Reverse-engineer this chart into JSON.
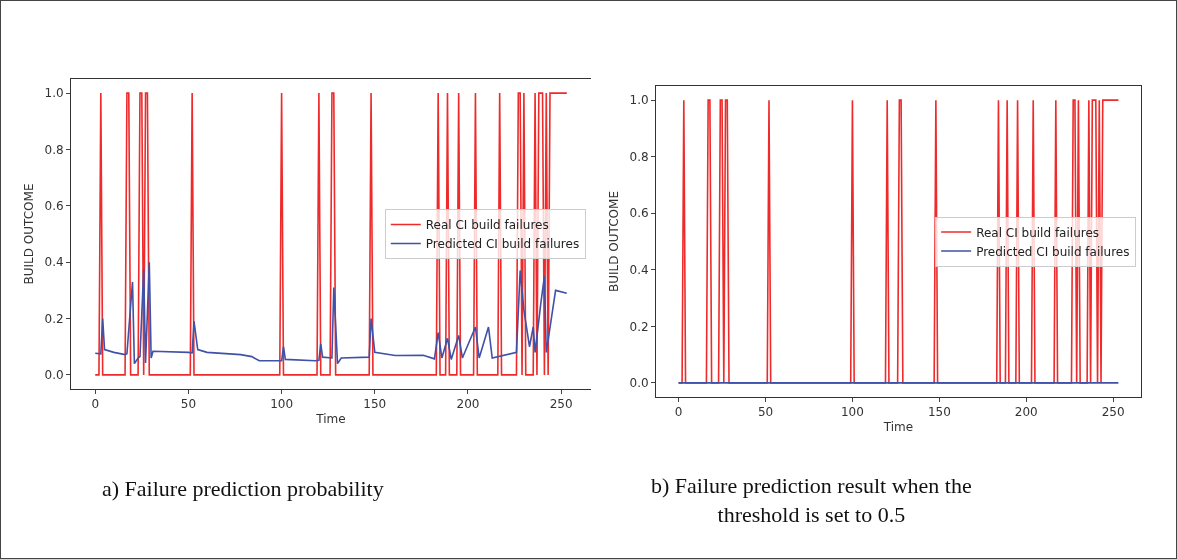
{
  "chart_data": [
    {
      "type": "line",
      "xlabel": "Time",
      "ylabel": "BUILD OUTCOME",
      "xlim": [
        -13,
        266
      ],
      "ylim": [
        -0.05,
        1.05
      ],
      "xticks": [
        0,
        50,
        100,
        150,
        200,
        250
      ],
      "yticks": [
        {
          "value": 0,
          "label": "0.0"
        },
        {
          "value": 0.2,
          "label": "0.2"
        },
        {
          "value": 0.4,
          "label": "0.4"
        },
        {
          "value": 0.6,
          "label": "0.6"
        },
        {
          "value": 0.8,
          "label": "0.8"
        },
        {
          "value": 1,
          "label": "1.0"
        }
      ],
      "grid": false,
      "legend": "right",
      "annotations": [
        "a) Failure prediction probability"
      ],
      "series": [
        {
          "name": "Real CI build failures",
          "color": "#ee2a2a",
          "x": [
            0,
            2,
            3,
            4,
            16,
            17,
            18,
            19,
            23,
            24,
            25,
            26,
            27,
            28,
            29,
            51,
            52,
            53,
            99,
            100,
            101,
            119,
            120,
            121,
            126,
            127,
            128,
            129,
            147,
            148,
            149,
            183,
            184,
            185,
            188,
            189,
            190,
            194,
            195,
            196,
            203,
            204,
            205,
            216,
            217,
            218,
            226,
            227,
            228,
            229,
            230,
            231,
            235,
            236,
            237,
            238,
            240,
            241,
            242,
            243,
            244,
            253
          ],
          "values": [
            0,
            0,
            1,
            0,
            0,
            1,
            1,
            0,
            0,
            1,
            1,
            0,
            1,
            1,
            0,
            0,
            1,
            0,
            0,
            1,
            0,
            0,
            1,
            0,
            0,
            1,
            1,
            0,
            0,
            1,
            0,
            0,
            1,
            0,
            0,
            1,
            0,
            0,
            1,
            0,
            0,
            1,
            0,
            0,
            1,
            0,
            0,
            1,
            1,
            0,
            1,
            0,
            0,
            1,
            0,
            1,
            1,
            0,
            1,
            0,
            1,
            1
          ]
        },
        {
          "name": "Predicted CI build failures",
          "color": "#3f51a8",
          "x": [
            0,
            3,
            4,
            5,
            10,
            16,
            17,
            20,
            21,
            23,
            24,
            26,
            27,
            29,
            30,
            31,
            50,
            52,
            53,
            55,
            60,
            78,
            84,
            88,
            100,
            101,
            102,
            118,
            120,
            121,
            122,
            127,
            128,
            130,
            132,
            147,
            148,
            150,
            161,
            176,
            182,
            184,
            186,
            189,
            191,
            195,
            197,
            204,
            206,
            211,
            213,
            226,
            228,
            230,
            233,
            235,
            236,
            239,
            241,
            242,
            247,
            253
          ],
          "values": [
            0.077,
            0.075,
            0.2,
            0.09,
            0.08,
            0.072,
            0.075,
            0.33,
            0.04,
            0.06,
            0.065,
            0.375,
            0.042,
            0.4,
            0.06,
            0.084,
            0.08,
            0.078,
            0.19,
            0.09,
            0.08,
            0.072,
            0.065,
            0.05,
            0.05,
            0.1,
            0.055,
            0.05,
            0.052,
            0.11,
            0.063,
            0.06,
            0.31,
            0.04,
            0.06,
            0.063,
            0.2,
            0.08,
            0.069,
            0.07,
            0.057,
            0.15,
            0.06,
            0.13,
            0.055,
            0.14,
            0.06,
            0.17,
            0.06,
            0.17,
            0.06,
            0.08,
            0.37,
            0.23,
            0.1,
            0.17,
            0.08,
            0.25,
            0.35,
            0.08,
            0.3,
            0.29
          ]
        }
      ]
    },
    {
      "type": "line",
      "xlabel": "Time",
      "ylabel": "BUILD OUTCOME",
      "xlim": [
        -13,
        266
      ],
      "ylim": [
        -0.05,
        1.05
      ],
      "xticks": [
        0,
        50,
        100,
        150,
        200,
        250
      ],
      "yticks": [
        {
          "value": 0,
          "label": "0.0"
        },
        {
          "value": 0.2,
          "label": "0.2"
        },
        {
          "value": 0.4,
          "label": "0.4"
        },
        {
          "value": 0.6,
          "label": "0.6"
        },
        {
          "value": 0.8,
          "label": "0.8"
        },
        {
          "value": 1,
          "label": "1.0"
        }
      ],
      "grid": false,
      "legend": "right",
      "annotations": [
        "b) Failure prediction result when the\nthreshold is set to 0.5"
      ],
      "series": [
        {
          "name": "Real CI build failures",
          "color": "#ee2a2a",
          "x": [
            0,
            2,
            3,
            4,
            16,
            17,
            18,
            19,
            23,
            24,
            25,
            26,
            27,
            28,
            29,
            51,
            52,
            53,
            99,
            100,
            101,
            119,
            120,
            121,
            126,
            127,
            128,
            129,
            147,
            148,
            149,
            183,
            184,
            185,
            188,
            189,
            190,
            194,
            195,
            196,
            203,
            204,
            205,
            216,
            217,
            218,
            226,
            227,
            228,
            229,
            230,
            231,
            235,
            236,
            237,
            238,
            240,
            241,
            242,
            243,
            244,
            253
          ],
          "values": [
            0,
            0,
            1,
            0,
            0,
            1,
            1,
            0,
            0,
            1,
            1,
            0,
            1,
            1,
            0,
            0,
            1,
            0,
            0,
            1,
            0,
            0,
            1,
            0,
            0,
            1,
            1,
            0,
            0,
            1,
            0,
            0,
            1,
            0,
            0,
            1,
            0,
            0,
            1,
            0,
            0,
            1,
            0,
            0,
            1,
            0,
            0,
            1,
            1,
            0,
            1,
            0,
            0,
            1,
            0,
            1,
            1,
            0,
            1,
            0,
            1,
            1
          ]
        },
        {
          "name": "Predicted CI build failures",
          "color": "#3f51a8",
          "x": [
            0,
            253
          ],
          "values": [
            0,
            0
          ]
        }
      ]
    }
  ]
}
